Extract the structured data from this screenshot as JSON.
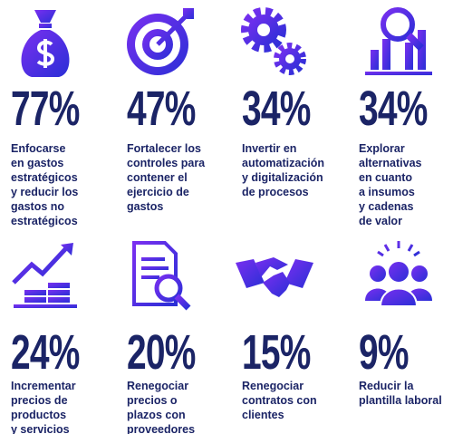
{
  "items": [
    {
      "value": "77%",
      "label": [
        "Enfocarse",
        "en gastos",
        "estratégicos",
        "y reducir los",
        "gastos no",
        "estratégicos"
      ]
    },
    {
      "value": "47%",
      "label": [
        "Fortalecer los",
        "controles para",
        "contener el",
        "ejercicio de",
        "gastos"
      ]
    },
    {
      "value": "34%",
      "label": [
        "Invertir en",
        "automatización",
        "y digitalización",
        "de procesos"
      ]
    },
    {
      "value": "34%",
      "label": [
        "Explorar",
        "alternativas",
        "en cuanto",
        "a insumos",
        "y cadenas",
        "de valor"
      ]
    },
    {
      "value": "24%",
      "label": [
        "Incrementar",
        "precios de",
        "productos",
        "y servicios"
      ]
    },
    {
      "value": "20%",
      "label": [
        "Renegociar",
        "precios o",
        "plazos con",
        "proveedores"
      ]
    },
    {
      "value": "15%",
      "label": [
        "Renegociar",
        "contratos con",
        "clientes"
      ]
    },
    {
      "value": "9%",
      "label": [
        "Reducir la",
        "plantilla laboral"
      ]
    }
  ]
}
